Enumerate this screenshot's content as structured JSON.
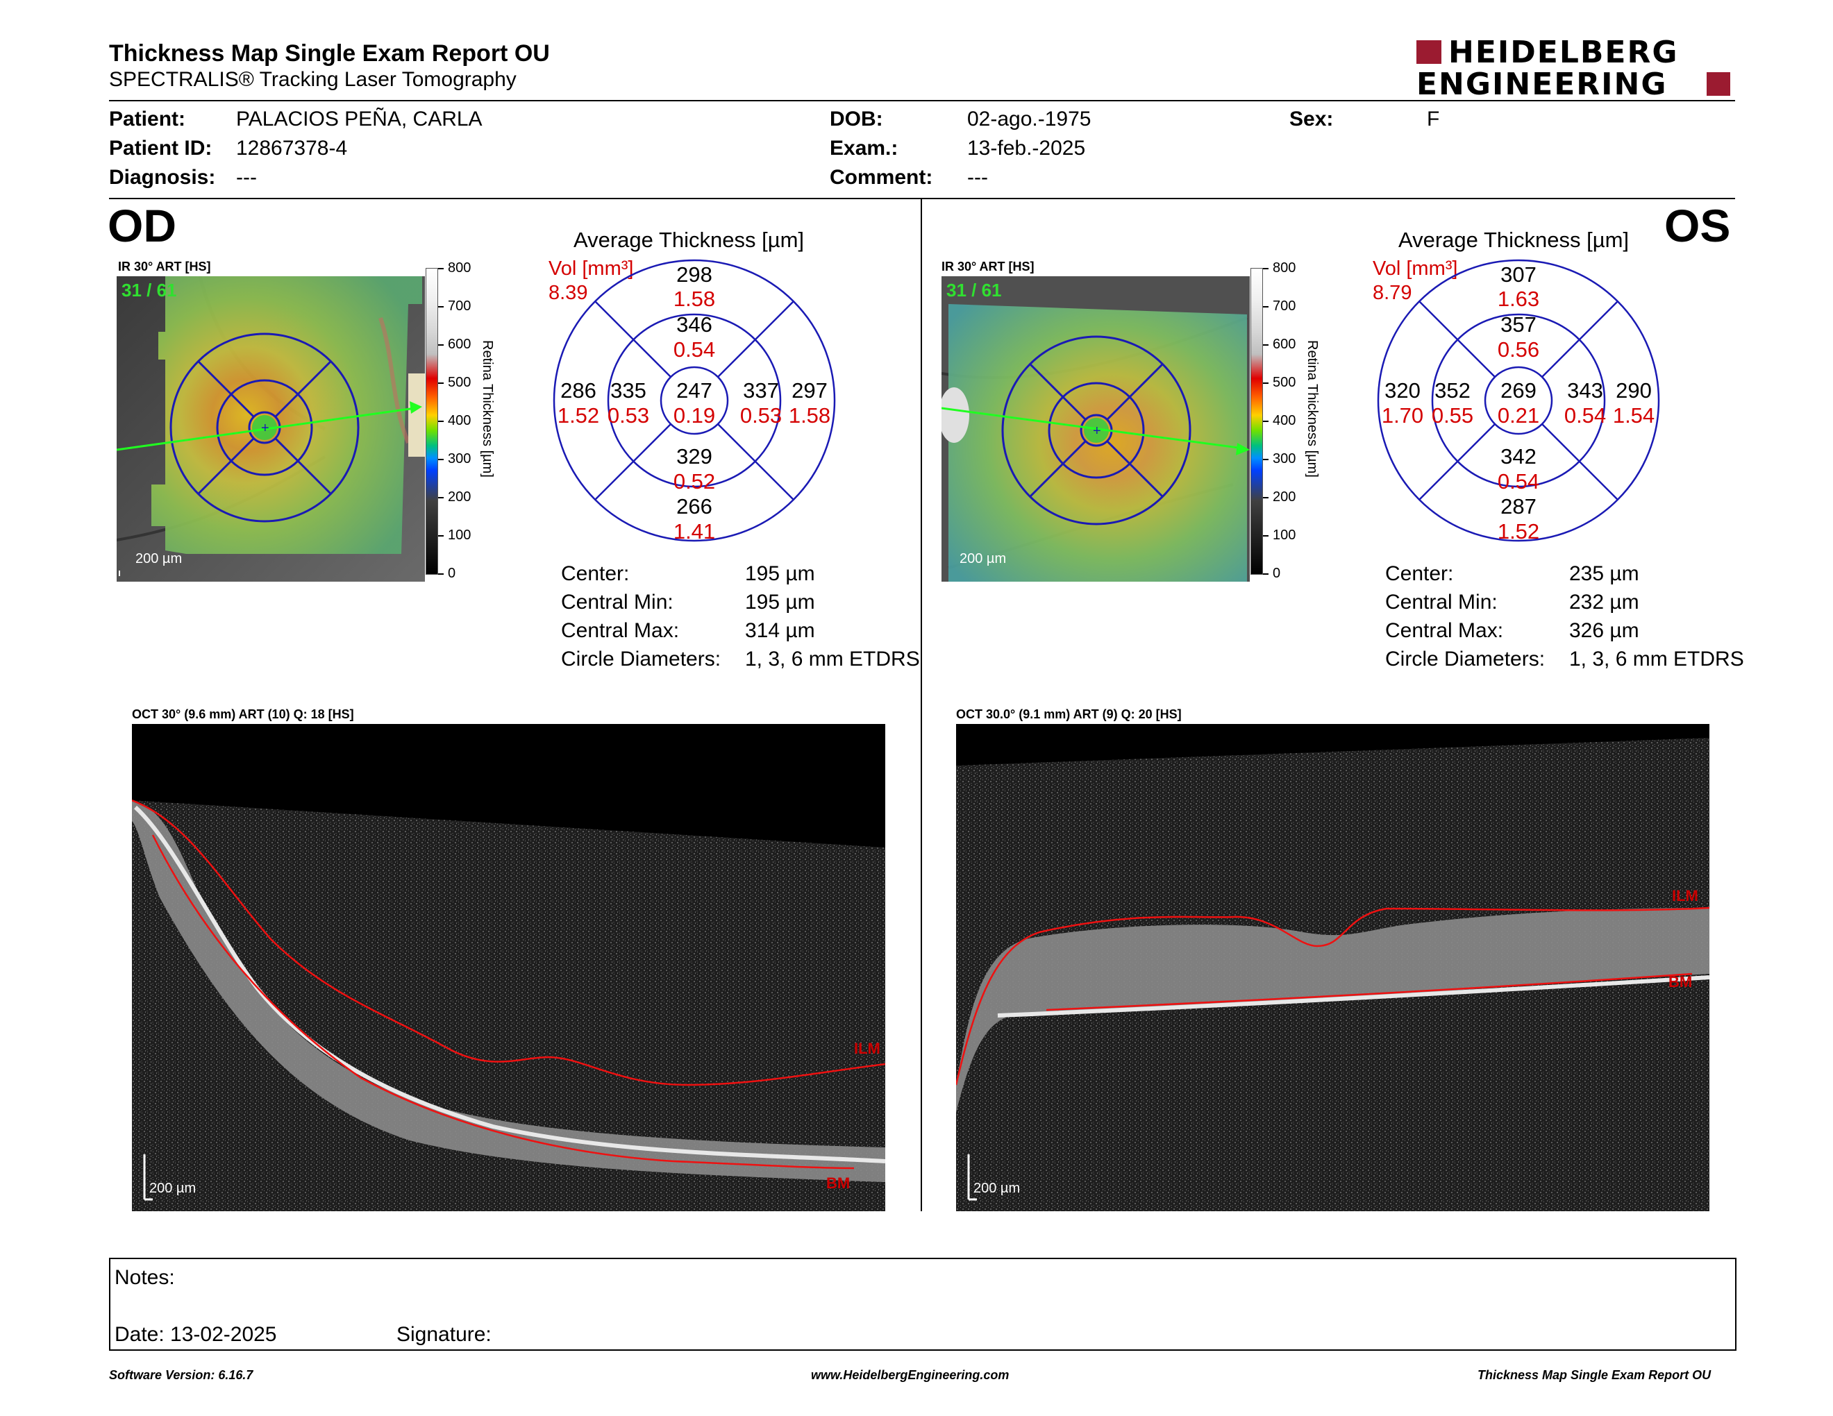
{
  "header": {
    "title": "Thickness Map Single Exam Report OU",
    "subtitle": "SPECTRALIS® Tracking Laser Tomography",
    "logo_line1": "HEIDELBERG",
    "logo_line2": "ENGINEERING",
    "brand_color": "#9b1b30"
  },
  "patient": {
    "patient_label": "Patient:",
    "patient_value": "PALACIOS PEÑA, CARLA",
    "id_label": "Patient ID:",
    "id_value": "12867378-4",
    "diagnosis_label": "Diagnosis:",
    "diagnosis_value": "---",
    "dob_label": "DOB:",
    "dob_value": "02-ago.-1975",
    "exam_label": "Exam.:",
    "exam_value": "13-feb.-2025",
    "comment_label": "Comment:",
    "comment_value": "---",
    "sex_label": "Sex:",
    "sex_value": "F"
  },
  "od": {
    "eye": "OD",
    "ir_caption": "IR 30° ART [HS]",
    "frame": "31 / 61",
    "scale": "200 µm",
    "colorbar_ticks": [
      "800",
      "700",
      "600",
      "500",
      "400",
      "300",
      "200",
      "100",
      "0"
    ],
    "colorbar_label": "Retina   Thickness [µm]",
    "avg_title": "Average Thickness [µm]",
    "vol_label": "Vol [mm³]",
    "vol_total": "8.39",
    "sectors": {
      "outer_sup": [
        "298",
        "1.58"
      ],
      "inner_sup": [
        "346",
        "0.54"
      ],
      "outer_temp": [
        "286",
        "1.52"
      ],
      "inner_temp": [
        "335",
        "0.53"
      ],
      "center": [
        "247",
        "0.19"
      ],
      "inner_nas": [
        "337",
        "0.53"
      ],
      "outer_nas": [
        "297",
        "1.58"
      ],
      "inner_inf": [
        "329",
        "0.52"
      ],
      "outer_inf": [
        "266",
        "1.41"
      ]
    },
    "stats": {
      "center_label": "Center:",
      "center_value": "195 µm",
      "min_label": "Central Min:",
      "min_value": "195 µm",
      "max_label": "Central Max:",
      "max_value": "314 µm",
      "diam_label": "Circle Diameters:",
      "diam_value": "1, 3, 6 mm ETDRS"
    },
    "oct_caption": "OCT 30° (9.6 mm) ART (10) Q: 18 [HS]",
    "oct_ilm": "ILM",
    "oct_bm": "BM",
    "oct_scale": "200 µm"
  },
  "os": {
    "eye": "OS",
    "ir_caption": "IR 30° ART [HS]",
    "frame": "31 / 61",
    "scale": "200 µm",
    "colorbar_ticks": [
      "800",
      "700",
      "600",
      "500",
      "400",
      "300",
      "200",
      "100",
      "0"
    ],
    "colorbar_label": "Retina   Thickness [µm]",
    "avg_title": "Average Thickness [µm]",
    "vol_label": "Vol [mm³]",
    "vol_total": "8.79",
    "sectors": {
      "outer_sup": [
        "307",
        "1.63"
      ],
      "inner_sup": [
        "357",
        "0.56"
      ],
      "outer_temp": [
        "320",
        "1.70"
      ],
      "inner_temp": [
        "352",
        "0.55"
      ],
      "center": [
        "269",
        "0.21"
      ],
      "inner_nas": [
        "343",
        "0.54"
      ],
      "outer_nas": [
        "290",
        "1.54"
      ],
      "inner_inf": [
        "342",
        "0.54"
      ],
      "outer_inf": [
        "287",
        "1.52"
      ]
    },
    "stats": {
      "center_label": "Center:",
      "center_value": "235 µm",
      "min_label": "Central Min:",
      "min_value": "232 µm",
      "max_label": "Central Max:",
      "max_value": "326 µm",
      "diam_label": "Circle Diameters:",
      "diam_value": "1, 3, 6 mm ETDRS"
    },
    "oct_caption": "OCT 30.0° (9.1 mm) ART (9) Q: 20 [HS]",
    "oct_ilm": "ILM",
    "oct_bm": "BM",
    "oct_scale": "200 µm"
  },
  "notes": {
    "notes_label": "Notes:",
    "date_label": "Date: 13-02-2025",
    "signature_label": "Signature:"
  },
  "footer": {
    "left": "Software Version: 6.16.7",
    "center": "www.HeidelbergEngineering.com",
    "right": "Thickness Map Single Exam Report OU"
  }
}
